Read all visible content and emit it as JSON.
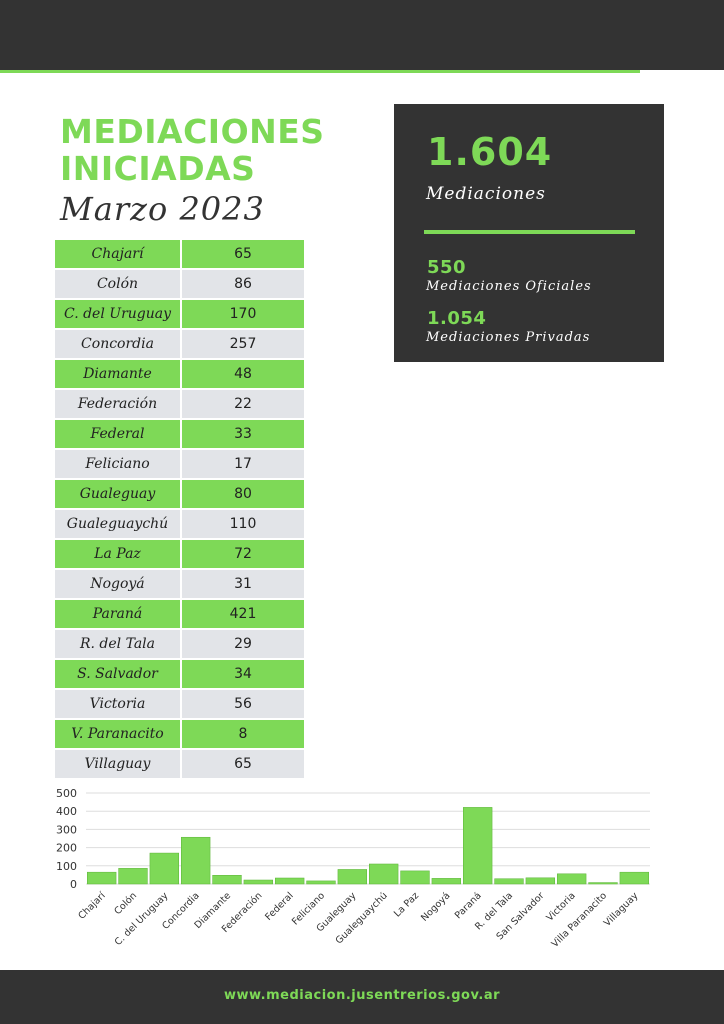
{
  "header": {
    "title_line1": "MEDIACIONES",
    "title_line2": "INICIADAS",
    "subtitle": "Marzo 2023"
  },
  "table": {
    "rows": [
      {
        "name": "Chajarí",
        "value": "65"
      },
      {
        "name": "Colón",
        "value": "86"
      },
      {
        "name": "C. del Uruguay",
        "value": "170"
      },
      {
        "name": "Concordia",
        "value": "257"
      },
      {
        "name": "Diamante",
        "value": "48"
      },
      {
        "name": "Federación",
        "value": "22"
      },
      {
        "name": "Federal",
        "value": "33"
      },
      {
        "name": "Feliciano",
        "value": "17"
      },
      {
        "name": "Gualeguay",
        "value": "80"
      },
      {
        "name": "Gualeguaychú",
        "value": "110"
      },
      {
        "name": "La Paz",
        "value": "72"
      },
      {
        "name": "Nogoyá",
        "value": "31"
      },
      {
        "name": "Paraná",
        "value": "421"
      },
      {
        "name": "R. del Tala",
        "value": "29"
      },
      {
        "name": "S. Salvador",
        "value": "34"
      },
      {
        "name": "Victoria",
        "value": "56"
      },
      {
        "name": "V. Paranacito",
        "value": "8"
      },
      {
        "name": "Villaguay",
        "value": "65"
      }
    ]
  },
  "summary": {
    "total": "1.604",
    "total_label": "Mediaciones",
    "oficiales": "550",
    "oficiales_label": "Mediaciones Oficiales",
    "privadas": "1.054",
    "privadas_label": "Mediaciones Privadas"
  },
  "footer": {
    "url": "www.mediacion.jusentrerios.gov.ar"
  },
  "colors": {
    "accent": "#7ed957",
    "dark": "#333333",
    "row_alt": "#e2e4e8"
  },
  "chart_data": {
    "type": "bar",
    "categories": [
      "Chajarí",
      "Colón",
      "C. del Uruguay",
      "Concordia",
      "Diamante",
      "Federación",
      "Federal",
      "Feliciano",
      "Gualeguay",
      "Gualeguaychú",
      "La Paz",
      "Nogoyá",
      "Paraná",
      "R. del Tala",
      "San Salvador",
      "Victoria",
      "Villa Paranacito",
      "Villaguay"
    ],
    "values": [
      65,
      86,
      170,
      257,
      48,
      22,
      33,
      17,
      80,
      110,
      72,
      31,
      421,
      29,
      34,
      56,
      8,
      65
    ],
    "title": "",
    "xlabel": "",
    "ylabel": "",
    "ylim": [
      0,
      500
    ],
    "yticks": [
      0,
      100,
      200,
      300,
      400,
      500
    ],
    "grid": true,
    "bar_color": "#7ed957"
  }
}
